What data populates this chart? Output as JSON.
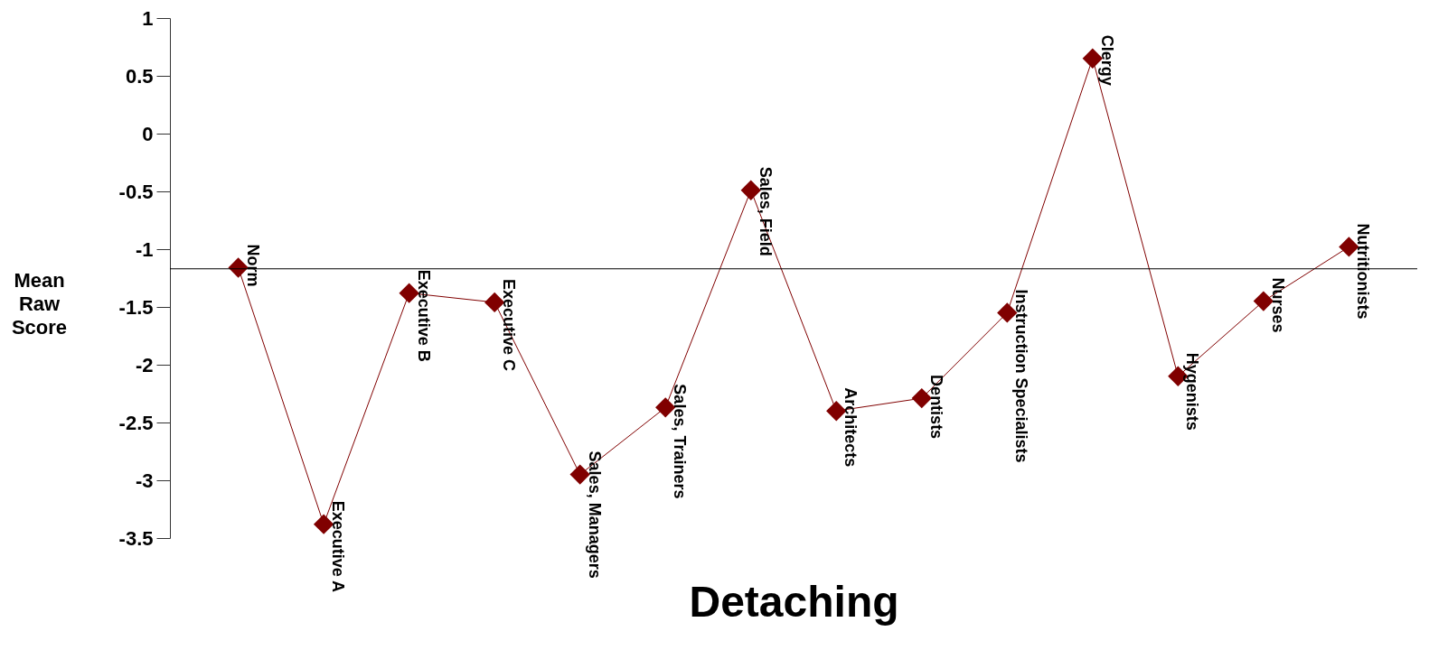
{
  "chart_data": {
    "type": "line",
    "xlabel": "Detaching",
    "ylabel": "Mean Raw Score",
    "categories": [
      "Norm",
      "Executive A",
      "Executive B",
      "Executive C",
      "Sales, Managers",
      "Sales, Trainers",
      "Sales, Field",
      "Architects",
      "Dentists",
      "Instruction Specialists",
      "Clergy",
      "Hygenists",
      "Nurses",
      "Nutritionists"
    ],
    "series": [
      {
        "color": "#800000",
        "values": [
          -1.16,
          -3.38,
          -1.38,
          -1.46,
          -2.95,
          -2.37,
          -0.49,
          -2.4,
          -2.29,
          -1.55,
          0.65,
          -2.1,
          -1.45,
          -0.98
        ]
      }
    ],
    "ylim": [
      -3.5,
      1
    ],
    "yticks": [
      -3.5,
      -3,
      -2.5,
      -2,
      -1.5,
      -1,
      -0.5,
      0,
      0.5,
      1
    ],
    "ref_lines": [
      {
        "axis": "y",
        "value": -1.17,
        "color": "#000000"
      }
    ],
    "marker": "diamond",
    "line_style": "solid",
    "grid": false
  }
}
